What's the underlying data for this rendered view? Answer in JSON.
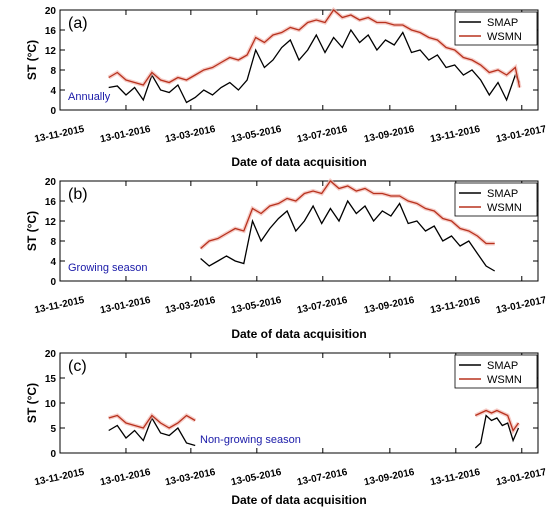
{
  "chart_data": [
    {
      "type": "line",
      "panel_label": "(a)",
      "annotation": "Annually",
      "ylabel": "ST (°C)",
      "xlabel": "Date of data acquisition",
      "ylim": [
        0,
        20
      ],
      "yticks": [
        "0",
        "4",
        "8",
        "12",
        "16",
        "20"
      ],
      "xticks": [
        "13-11-2015",
        "13-01-2016",
        "13-03-2016",
        "13-05-2016",
        "13-07-2016",
        "13-09-2016",
        "13-11-2016",
        "13-01-2017"
      ],
      "legend": [
        "SMAP",
        "WSMN"
      ],
      "legend_position": "top-right",
      "series": [
        {
          "name": "SMAP",
          "color": "#000000",
          "x": [
            "2015-12-28",
            "2016-01-05",
            "2016-01-13",
            "2016-01-21",
            "2016-01-29",
            "2016-02-06",
            "2016-02-14",
            "2016-02-22",
            "2016-03-01",
            "2016-03-09",
            "2016-03-17",
            "2016-03-25",
            "2016-04-02",
            "2016-04-10",
            "2016-04-18",
            "2016-04-26",
            "2016-05-04",
            "2016-05-12",
            "2016-05-20",
            "2016-05-28",
            "2016-06-05",
            "2016-06-13",
            "2016-06-21",
            "2016-06-29",
            "2016-07-07",
            "2016-07-15",
            "2016-07-23",
            "2016-07-31",
            "2016-08-08",
            "2016-08-16",
            "2016-08-24",
            "2016-09-01",
            "2016-09-09",
            "2016-09-17",
            "2016-09-25",
            "2016-10-03",
            "2016-10-11",
            "2016-10-19",
            "2016-10-27",
            "2016-11-04",
            "2016-11-12",
            "2016-11-20",
            "2016-11-28",
            "2016-12-06",
            "2016-12-14",
            "2016-12-22",
            "2016-12-30",
            "2017-01-07",
            "2017-01-11"
          ],
          "values": [
            4.5,
            4.8,
            3.0,
            4.5,
            2.0,
            7.0,
            4.0,
            3.5,
            5.0,
            1.5,
            2.5,
            4.0,
            3.0,
            4.5,
            5.5,
            4.0,
            6.0,
            12.0,
            8.5,
            10.0,
            12.5,
            14.0,
            10.0,
            12.0,
            15.0,
            11.5,
            14.5,
            12.5,
            16.0,
            13.5,
            15.0,
            12.0,
            14.0,
            13.0,
            15.5,
            11.5,
            12.0,
            10.0,
            11.0,
            8.5,
            9.0,
            7.0,
            8.0,
            6.0,
            3.0,
            5.5,
            2.0,
            7.0,
            5.5
          ]
        },
        {
          "name": "WSMN",
          "color": "#b8321e",
          "x": [
            "2015-12-28",
            "2016-01-05",
            "2016-01-13",
            "2016-01-21",
            "2016-01-29",
            "2016-02-06",
            "2016-02-14",
            "2016-02-22",
            "2016-03-01",
            "2016-03-09",
            "2016-03-17",
            "2016-03-25",
            "2016-04-02",
            "2016-04-10",
            "2016-04-18",
            "2016-04-26",
            "2016-05-04",
            "2016-05-12",
            "2016-05-20",
            "2016-05-28",
            "2016-06-05",
            "2016-06-13",
            "2016-06-21",
            "2016-06-29",
            "2016-07-07",
            "2016-07-15",
            "2016-07-23",
            "2016-07-31",
            "2016-08-08",
            "2016-08-16",
            "2016-08-24",
            "2016-09-01",
            "2016-09-09",
            "2016-09-17",
            "2016-09-25",
            "2016-10-03",
            "2016-10-11",
            "2016-10-19",
            "2016-10-27",
            "2016-11-04",
            "2016-11-12",
            "2016-11-20",
            "2016-11-28",
            "2016-12-06",
            "2016-12-14",
            "2016-12-22",
            "2016-12-30",
            "2017-01-07",
            "2017-01-11"
          ],
          "values": [
            6.5,
            7.5,
            6.0,
            5.5,
            5.0,
            7.5,
            6.0,
            5.5,
            6.5,
            6.0,
            7.0,
            8.0,
            8.5,
            9.5,
            10.5,
            10.0,
            11.0,
            14.5,
            13.5,
            15.0,
            15.5,
            16.5,
            16.0,
            17.5,
            18.0,
            17.5,
            20.0,
            18.5,
            19.0,
            18.0,
            18.5,
            17.5,
            17.5,
            17.0,
            17.0,
            16.0,
            15.5,
            14.5,
            14.0,
            12.5,
            12.0,
            10.5,
            10.0,
            9.0,
            7.5,
            8.0,
            7.0,
            8.5,
            4.5
          ]
        }
      ]
    },
    {
      "type": "line",
      "panel_label": "(b)",
      "annotation": "Growing season",
      "ylabel": "ST (°C)",
      "xlabel": "Date of data acquisition",
      "ylim": [
        0,
        20
      ],
      "yticks": [
        "0",
        "4",
        "8",
        "12",
        "16",
        "20"
      ],
      "xticks": [
        "13-11-2015",
        "13-01-2016",
        "13-03-2016",
        "13-05-2016",
        "13-07-2016",
        "13-09-2016",
        "13-11-2016",
        "13-01-2017"
      ],
      "legend": [
        "SMAP",
        "WSMN"
      ],
      "legend_position": "top-right",
      "series": [
        {
          "name": "SMAP",
          "color": "#000000",
          "x": [
            "2016-03-22",
            "2016-03-30",
            "2016-04-07",
            "2016-04-15",
            "2016-04-23",
            "2016-05-01",
            "2016-05-09",
            "2016-05-17",
            "2016-05-25",
            "2016-06-02",
            "2016-06-10",
            "2016-06-18",
            "2016-06-26",
            "2016-07-04",
            "2016-07-12",
            "2016-07-20",
            "2016-07-28",
            "2016-08-05",
            "2016-08-13",
            "2016-08-21",
            "2016-08-29",
            "2016-09-06",
            "2016-09-14",
            "2016-09-22",
            "2016-09-30",
            "2016-10-08",
            "2016-10-16",
            "2016-10-24",
            "2016-11-01",
            "2016-11-09",
            "2016-11-17",
            "2016-11-25",
            "2016-12-03",
            "2016-12-11",
            "2016-12-19"
          ],
          "values": [
            4.5,
            3.0,
            4.0,
            5.0,
            4.0,
            3.5,
            12.0,
            8.0,
            10.5,
            12.5,
            14.0,
            10.0,
            12.0,
            15.0,
            11.5,
            14.5,
            12.0,
            16.0,
            13.5,
            15.0,
            12.0,
            14.0,
            13.0,
            15.5,
            11.5,
            12.0,
            10.0,
            11.0,
            8.0,
            9.0,
            7.0,
            8.0,
            5.5,
            3.0,
            2.0
          ]
        },
        {
          "name": "WSMN",
          "color": "#b8321e",
          "x": [
            "2016-03-22",
            "2016-03-30",
            "2016-04-07",
            "2016-04-15",
            "2016-04-23",
            "2016-05-01",
            "2016-05-09",
            "2016-05-17",
            "2016-05-25",
            "2016-06-02",
            "2016-06-10",
            "2016-06-18",
            "2016-06-26",
            "2016-07-04",
            "2016-07-12",
            "2016-07-20",
            "2016-07-28",
            "2016-08-05",
            "2016-08-13",
            "2016-08-21",
            "2016-08-29",
            "2016-09-06",
            "2016-09-14",
            "2016-09-22",
            "2016-09-30",
            "2016-10-08",
            "2016-10-16",
            "2016-10-24",
            "2016-11-01",
            "2016-11-09",
            "2016-11-17",
            "2016-11-25",
            "2016-12-03",
            "2016-12-11",
            "2016-12-19"
          ],
          "values": [
            6.5,
            8.0,
            8.5,
            9.5,
            10.5,
            10.0,
            14.5,
            13.5,
            15.0,
            15.5,
            16.5,
            16.0,
            17.5,
            18.0,
            17.5,
            20.0,
            18.5,
            19.0,
            18.0,
            18.5,
            17.5,
            17.5,
            17.0,
            17.0,
            16.0,
            15.5,
            14.5,
            14.0,
            12.5,
            12.0,
            10.5,
            10.0,
            9.0,
            7.5,
            7.5
          ]
        }
      ]
    },
    {
      "type": "line",
      "panel_label": "(c)",
      "annotation": "Non-growing season",
      "ylabel": "ST (°C)",
      "xlabel": "Date of data acquisition",
      "ylim": [
        0,
        20
      ],
      "yticks": [
        "0",
        "5",
        "10",
        "15",
        "20"
      ],
      "xticks": [
        "13-11-2015",
        "13-01-2016",
        "13-03-2016",
        "13-05-2016",
        "13-07-2016",
        "13-09-2016",
        "13-11-2016",
        "13-01-2017"
      ],
      "legend": [
        "SMAP",
        "WSMN"
      ],
      "legend_position": "top-right",
      "series": [
        {
          "name": "SMAP",
          "color": "#000000",
          "segments": [
            {
              "x": [
                "2015-12-28",
                "2016-01-05",
                "2016-01-13",
                "2016-01-21",
                "2016-01-29",
                "2016-02-06",
                "2016-02-14",
                "2016-02-22",
                "2016-03-01",
                "2016-03-09",
                "2016-03-17"
              ],
              "values": [
                4.5,
                5.5,
                3.0,
                4.5,
                2.5,
                7.0,
                4.0,
                3.5,
                5.0,
                2.0,
                1.5
              ]
            },
            {
              "x": [
                "2016-12-01",
                "2016-12-06",
                "2016-12-11",
                "2016-12-16",
                "2016-12-21",
                "2016-12-26",
                "2016-12-31",
                "2017-01-05",
                "2017-01-10"
              ],
              "values": [
                1.0,
                2.0,
                7.5,
                6.5,
                7.0,
                5.5,
                6.0,
                2.5,
                5.0
              ]
            }
          ]
        },
        {
          "name": "WSMN",
          "color": "#b8321e",
          "segments": [
            {
              "x": [
                "2015-12-28",
                "2016-01-05",
                "2016-01-13",
                "2016-01-21",
                "2016-01-29",
                "2016-02-06",
                "2016-02-14",
                "2016-02-22",
                "2016-03-01",
                "2016-03-09",
                "2016-03-17"
              ],
              "values": [
                7.0,
                7.5,
                6.0,
                5.5,
                5.0,
                7.5,
                6.0,
                5.0,
                6.0,
                7.5,
                6.5
              ]
            },
            {
              "x": [
                "2016-12-01",
                "2016-12-06",
                "2016-12-11",
                "2016-12-16",
                "2016-12-21",
                "2016-12-26",
                "2016-12-31",
                "2017-01-05",
                "2017-01-10"
              ],
              "values": [
                7.5,
                8.0,
                8.5,
                8.0,
                8.5,
                8.0,
                7.5,
                4.5,
                6.0
              ]
            }
          ]
        }
      ]
    }
  ]
}
